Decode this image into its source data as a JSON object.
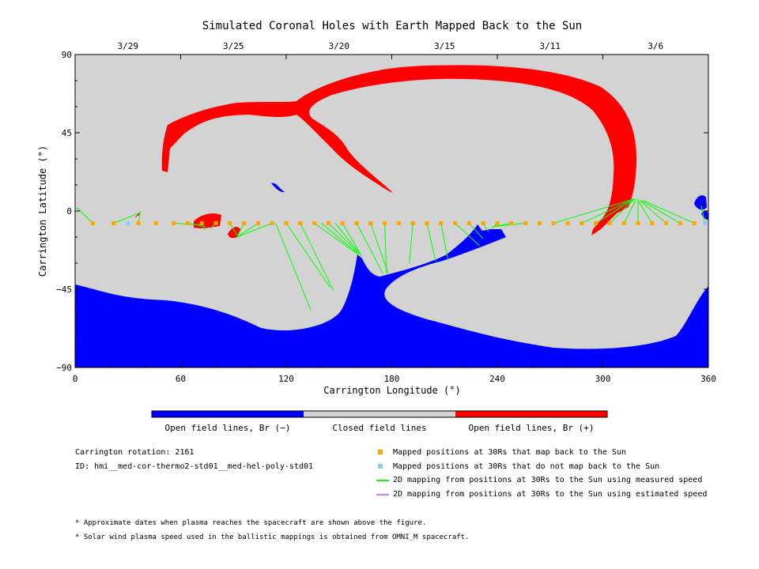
{
  "chart_data": {
    "type": "map",
    "title": "Simulated Coronal Holes with Earth Mapped Back to the Sun",
    "xlabel": "Carrington Longitude (°)",
    "ylabel": "Carrington Latitude (°)",
    "xlim": [
      0,
      360
    ],
    "ylim": [
      -90,
      90
    ],
    "xticks": [
      "0",
      "60",
      "120",
      "180",
      "240",
      "300",
      "360"
    ],
    "yticks": [
      "90",
      "45",
      "0",
      "−45",
      "−90"
    ],
    "top_axis_dates": [
      {
        "label": "3/29",
        "lon": 30
      },
      {
        "label": "3/25",
        "lon": 90
      },
      {
        "label": "3/20",
        "lon": 150
      },
      {
        "label": "3/15",
        "lon": 210
      },
      {
        "label": "3/11",
        "lon": 270
      },
      {
        "label": "3/6",
        "lon": 330
      }
    ],
    "colorbar": [
      {
        "label": "Open field lines, Br (−)",
        "color": "#0000ff"
      },
      {
        "label": "Closed field lines",
        "color": "#d3d3d3"
      },
      {
        "label": "Open field lines, Br (+)",
        "color": "#ff0000"
      }
    ],
    "mapping_latitude": -7,
    "mapped_positions": [
      {
        "lon": 10,
        "map_back": true
      },
      {
        "lon": 22,
        "map_back": true
      },
      {
        "lon": 30,
        "map_back": false
      },
      {
        "lon": 36,
        "map_back": true
      },
      {
        "lon": 46,
        "map_back": true
      },
      {
        "lon": 56,
        "map_back": true
      },
      {
        "lon": 64,
        "map_back": true
      },
      {
        "lon": 72,
        "map_back": true
      },
      {
        "lon": 80,
        "map_back": true
      },
      {
        "lon": 88,
        "map_back": true
      },
      {
        "lon": 96,
        "map_back": true
      },
      {
        "lon": 104,
        "map_back": true
      },
      {
        "lon": 112,
        "map_back": true
      },
      {
        "lon": 120,
        "map_back": true
      },
      {
        "lon": 128,
        "map_back": true
      },
      {
        "lon": 136,
        "map_back": true
      },
      {
        "lon": 144,
        "map_back": true
      },
      {
        "lon": 152,
        "map_back": true
      },
      {
        "lon": 160,
        "map_back": true
      },
      {
        "lon": 168,
        "map_back": true
      },
      {
        "lon": 176,
        "map_back": true
      },
      {
        "lon": 184,
        "map_back": true
      },
      {
        "lon": 192,
        "map_back": true
      },
      {
        "lon": 200,
        "map_back": true
      },
      {
        "lon": 208,
        "map_back": true
      },
      {
        "lon": 216,
        "map_back": true
      },
      {
        "lon": 224,
        "map_back": true
      },
      {
        "lon": 232,
        "map_back": true
      },
      {
        "lon": 240,
        "map_back": true
      },
      {
        "lon": 248,
        "map_back": true
      },
      {
        "lon": 256,
        "map_back": true
      },
      {
        "lon": 264,
        "map_back": true
      },
      {
        "lon": 272,
        "map_back": true
      },
      {
        "lon": 280,
        "map_back": true
      },
      {
        "lon": 288,
        "map_back": true
      },
      {
        "lon": 296,
        "map_back": true
      },
      {
        "lon": 304,
        "map_back": true
      },
      {
        "lon": 312,
        "map_back": true
      },
      {
        "lon": 320,
        "map_back": true
      },
      {
        "lon": 328,
        "map_back": true
      },
      {
        "lon": 336,
        "map_back": true
      },
      {
        "lon": 344,
        "map_back": true
      },
      {
        "lon": 352,
        "map_back": true
      },
      {
        "lon": 358,
        "map_back": false
      }
    ],
    "mappings_measured": [
      {
        "from": [
          10,
          -7
        ],
        "to": [
          1,
          2
        ]
      },
      {
        "from": [
          22,
          -7
        ],
        "to": [
          37,
          -1
        ]
      },
      {
        "from": [
          36,
          -7
        ],
        "to": [
          37,
          -1
        ]
      },
      {
        "from": [
          56,
          -7
        ],
        "to": [
          72,
          -8
        ]
      },
      {
        "from": [
          64,
          -7
        ],
        "to": [
          74,
          -9
        ]
      },
      {
        "from": [
          72,
          -7
        ],
        "to": [
          74,
          -11
        ]
      },
      {
        "from": [
          80,
          -7
        ],
        "to": [
          77,
          -10
        ]
      },
      {
        "from": [
          88,
          -7
        ],
        "to": [
          92,
          -14
        ]
      },
      {
        "from": [
          96,
          -7
        ],
        "to": [
          92,
          -15
        ]
      },
      {
        "from": [
          104,
          -7
        ],
        "to": [
          92,
          -15
        ]
      },
      {
        "from": [
          112,
          -7
        ],
        "to": [
          92,
          -15
        ]
      },
      {
        "from": [
          114,
          -7
        ],
        "to": [
          134,
          -57
        ]
      },
      {
        "from": [
          120,
          -7
        ],
        "to": [
          145,
          -44
        ]
      },
      {
        "from": [
          128,
          -7
        ],
        "to": [
          147,
          -46
        ]
      },
      {
        "from": [
          136,
          -7
        ],
        "to": [
          161,
          -25
        ]
      },
      {
        "from": [
          140,
          -7
        ],
        "to": [
          160,
          -24
        ]
      },
      {
        "from": [
          144,
          -7
        ],
        "to": [
          161,
          -24
        ]
      },
      {
        "from": [
          148,
          -7
        ],
        "to": [
          162,
          -25
        ]
      },
      {
        "from": [
          152,
          -7
        ],
        "to": [
          163,
          -26
        ]
      },
      {
        "from": [
          160,
          -7
        ],
        "to": [
          175,
          -36
        ]
      },
      {
        "from": [
          168,
          -7
        ],
        "to": [
          178,
          -36
        ]
      },
      {
        "from": [
          176,
          -7
        ],
        "to": [
          177,
          -36
        ]
      },
      {
        "from": [
          192,
          -7
        ],
        "to": [
          190,
          -30
        ]
      },
      {
        "from": [
          200,
          -7
        ],
        "to": [
          205,
          -29
        ]
      },
      {
        "from": [
          208,
          -7
        ],
        "to": [
          212,
          -28
        ]
      },
      {
        "from": [
          216,
          -7
        ],
        "to": [
          230,
          -20
        ]
      },
      {
        "from": [
          224,
          -7
        ],
        "to": [
          232,
          -16
        ]
      },
      {
        "from": [
          232,
          -7
        ],
        "to": [
          235,
          -12
        ]
      },
      {
        "from": [
          240,
          -7
        ],
        "to": [
          237,
          -10
        ]
      },
      {
        "from": [
          248,
          -7
        ],
        "to": [
          238,
          -9
        ]
      },
      {
        "from": [
          256,
          -7
        ],
        "to": [
          238,
          -9
        ]
      },
      {
        "from": [
          272,
          -7
        ],
        "to": [
          318,
          7
        ]
      },
      {
        "from": [
          288,
          -7
        ],
        "to": [
          318,
          7
        ]
      },
      {
        "from": [
          296,
          -7
        ],
        "to": [
          318,
          7
        ]
      },
      {
        "from": [
          304,
          -7
        ],
        "to": [
          318,
          7
        ]
      },
      {
        "from": [
          312,
          -7
        ],
        "to": [
          319,
          7
        ]
      },
      {
        "from": [
          320,
          -7
        ],
        "to": [
          320,
          7
        ]
      },
      {
        "from": [
          328,
          -7
        ],
        "to": [
          320,
          6
        ]
      },
      {
        "from": [
          336,
          -7
        ],
        "to": [
          321,
          6
        ]
      },
      {
        "from": [
          344,
          -7
        ],
        "to": [
          322,
          6
        ]
      },
      {
        "from": [
          352,
          -7
        ],
        "to": [
          323,
          6
        ]
      },
      {
        "from": [
          358,
          -7
        ],
        "to": [
          356,
          3
        ]
      }
    ],
    "legend": {
      "mapped_back": {
        "label": "Mapped positions at 30Rs that map back to the Sun",
        "color": "#ffa500"
      },
      "not_mapped": {
        "label": "Mapped positions at 30Rs that do not map back to the Sun",
        "color": "#87cefa"
      },
      "measured": {
        "label": "2D mapping from positions at 30Rs to the Sun using measured speed",
        "color": "#00ff00"
      },
      "estimated": {
        "label": "2D mapping from positions at 30Rs to the Sun using estimated speed",
        "color": "#c080ff"
      }
    }
  },
  "info": {
    "rotation": "Carrington rotation: 2161",
    "id": "ID: hmi__med-cor-thermo2-std01__med-hel-poly-std01"
  },
  "footnotes": {
    "dates": "* Approximate dates when plasma reaches the spacecraft are shown above the figure.",
    "speed": "* Solar wind plasma speed used in the ballistic mappings is obtained from OMNI_M spacecraft."
  }
}
